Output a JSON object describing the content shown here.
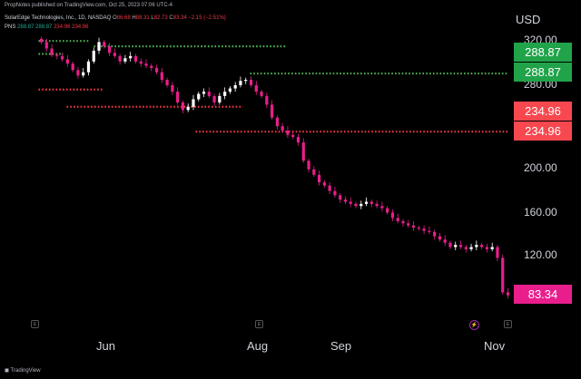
{
  "header": {
    "published": "PropNotes published on TradingView.com, Oct 25, 2023 07:06 UTC-4"
  },
  "legend": {
    "symbol": "SolarEdge Technologies, Inc., 1D, NASDAQ",
    "o_label": "O",
    "o_value": "86.68",
    "h_label": "H",
    "h_value": "88.31",
    "l_label": "L",
    "l_value": "82.73",
    "c_label": "C",
    "c_value": "83.34",
    "change": "−2.15 (−2.51%)",
    "indicator_name": "PNS",
    "indicator_values": [
      "288.87",
      "288.87",
      "234.96",
      "234.96"
    ]
  },
  "price_scale": {
    "currency": "USD",
    "ticks": [
      "320.00",
      "280.00",
      "200.00",
      "160.00",
      "120.00"
    ],
    "badges": [
      {
        "value": "288.87",
        "color": "#21a34a"
      },
      {
        "value": "288.87",
        "color": "#21a34a"
      },
      {
        "value": "234.96",
        "color": "#f8484f"
      },
      {
        "value": "234.96",
        "color": "#f8484f"
      },
      {
        "value": "83.34",
        "color": "#e91e8c"
      }
    ]
  },
  "time_axis": {
    "labels": [
      "Jun",
      "Aug",
      "Sep",
      "Nov"
    ]
  },
  "events": [
    {
      "label": "E"
    },
    {
      "label": "E"
    },
    {
      "label": "E"
    }
  ],
  "footer": {
    "logo_text": "TradingView"
  },
  "colors": {
    "up_candle": "#ffffff",
    "down_candle": "#e91e8c",
    "pivot_high": "#4caf50",
    "pivot_low": "#f23645"
  },
  "chart_data": {
    "type": "candlestick",
    "closes": [
      318,
      312,
      306,
      305,
      302,
      298,
      292,
      287,
      290,
      300,
      310,
      318,
      314,
      308,
      305,
      300,
      303,
      305,
      300,
      298,
      296,
      294,
      290,
      283,
      278,
      272,
      262,
      255,
      258,
      265,
      270,
      272,
      268,
      262,
      268,
      272,
      275,
      278,
      282,
      283,
      278,
      272,
      268,
      260,
      248,
      240,
      236,
      232,
      230,
      225,
      208,
      200,
      195,
      188,
      185,
      180,
      176,
      172,
      170,
      168,
      166,
      168,
      170,
      168,
      166,
      164,
      160,
      155,
      152,
      150,
      148,
      146,
      145,
      143,
      142,
      138,
      135,
      132,
      128,
      130,
      128,
      126,
      128,
      130,
      128,
      126,
      128,
      118,
      86,
      83.34
    ],
    "resistance": [
      288.87
    ],
    "support": [
      234.96
    ]
  }
}
